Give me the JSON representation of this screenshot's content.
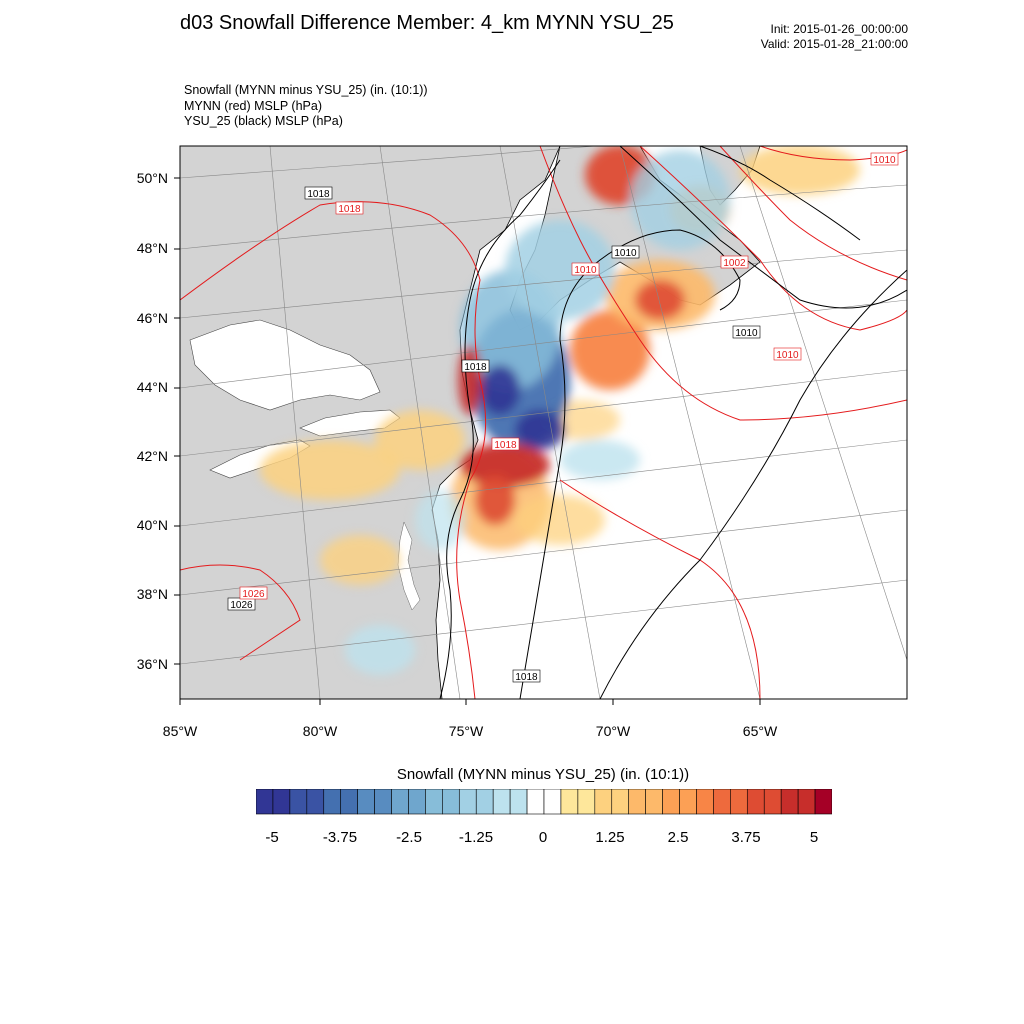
{
  "title": "d03 Snowfall Difference Member: 4_km MYNN YSU_25",
  "init_label": "Init: 2015-01-26_00:00:00",
  "valid_label": "Valid: 2015-01-28_21:00:00",
  "subtitle_lines": [
    "Snowfall (MYNN minus YSU_25)   (in. (10:1))",
    "MYNN (red) MSLP   (hPa)",
    "YSU_25 (black) MSLP   (hPa)"
  ],
  "lat_labels": [
    "50°N",
    "48°N",
    "46°N",
    "44°N",
    "42°N",
    "40°N",
    "38°N",
    "36°N"
  ],
  "lon_labels": [
    "85°W",
    "80°W",
    "75°W",
    "70°W",
    "65°W"
  ],
  "contour_labels_black": [
    "1018",
    "1010",
    "1010",
    "1018",
    "1026",
    "1018"
  ],
  "contour_labels_red": [
    "1018",
    "1010",
    "1010",
    "1002",
    "1010",
    "1018",
    "1026"
  ],
  "colorbar": {
    "title": "Snowfall (MYNN minus YSU_25)  (in. (10:1))",
    "tick_labels": [
      "-5",
      "-3.75",
      "-2.5",
      "-1.25",
      "0",
      "1.25",
      "2.5",
      "3.75",
      "5"
    ],
    "colors": [
      "#313695",
      "#3a53a4",
      "#4470b0",
      "#588cc0",
      "#6fa6cd",
      "#87bdd9",
      "#a2d0e4",
      "#bde2ee",
      "#ffffff",
      "#fee79b",
      "#fdd17f",
      "#fdb96a",
      "#fca055",
      "#f88546",
      "#ee6a3d",
      "#de4c33",
      "#c72e2b",
      "#a50026"
    ]
  },
  "colors": {
    "land": "#d3d3d3",
    "water": "#ffffff",
    "red_contour": "#e41a1c",
    "black_contour": "#000000"
  }
}
